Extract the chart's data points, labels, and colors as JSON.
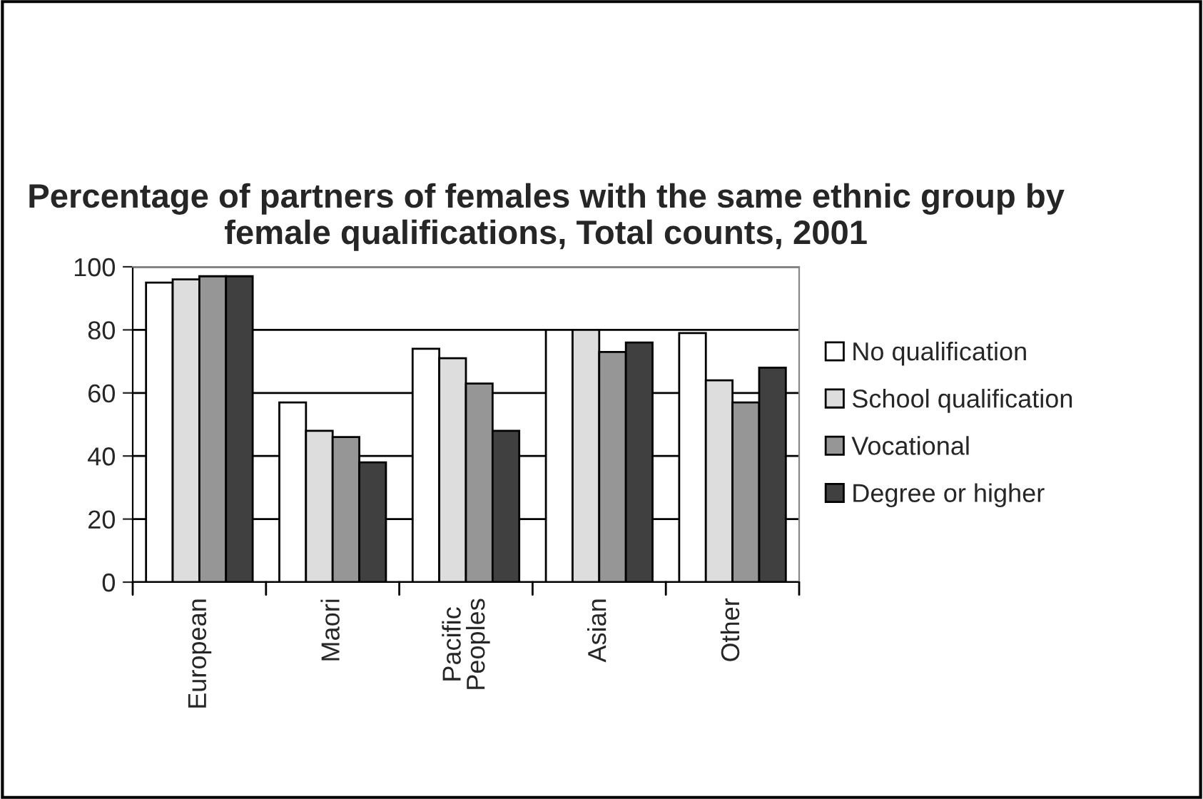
{
  "chart_data": {
    "type": "bar",
    "title": "Percentage of partners of females with the same ethnic group by female qualifications, Total counts, 2001",
    "categories": [
      "European",
      "Maori",
      "Pacific\nPeoples",
      "Asian",
      "Other"
    ],
    "series": [
      {
        "name": "No qualification",
        "color": "#ffffff",
        "values": [
          95,
          57,
          74,
          80,
          79
        ]
      },
      {
        "name": "School qualification",
        "color": "#dddddd",
        "values": [
          96,
          48,
          71,
          80,
          64
        ]
      },
      {
        "name": "Vocational",
        "color": "#969696",
        "values": [
          97,
          46,
          63,
          73,
          57
        ]
      },
      {
        "name": "Degree or higher",
        "color": "#404040",
        "values": [
          97,
          38,
          48,
          76,
          68
        ]
      }
    ],
    "ylim": [
      0,
      100
    ],
    "yticks": [
      0,
      20,
      40,
      60,
      80,
      100
    ],
    "grid": "y",
    "legend": "right"
  }
}
